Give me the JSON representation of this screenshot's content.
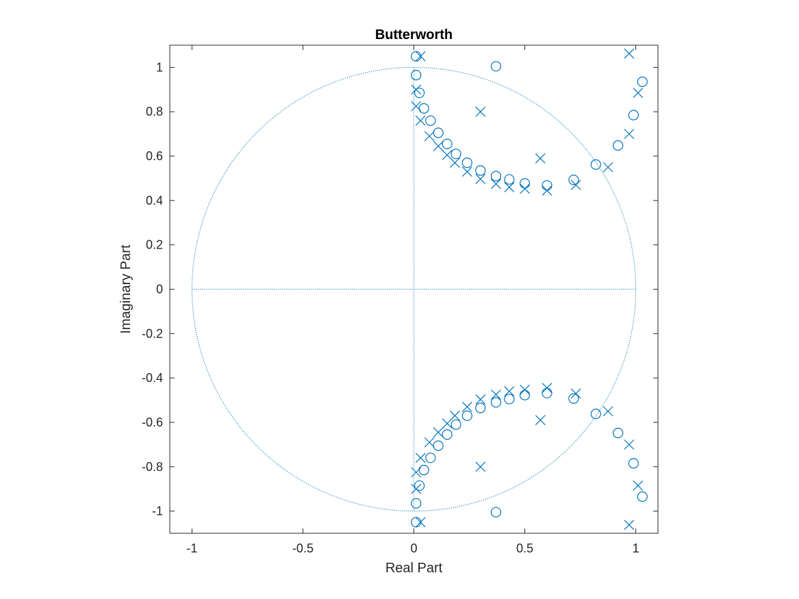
{
  "chart_data": {
    "type": "scatter",
    "title": "Butterworth",
    "xlabel": "Real Part",
    "ylabel": "Imaginary Part",
    "xlim": [
      -1.1,
      1.1
    ],
    "ylim": [
      -1.1,
      1.1
    ],
    "xticks": [
      -1,
      -0.5,
      0,
      0.5,
      1
    ],
    "xtick_labels": [
      "-1",
      "-0.5",
      "0",
      "0.5",
      "1"
    ],
    "yticks": [
      -1,
      -0.8,
      -0.6,
      -0.4,
      -0.2,
      0,
      0.2,
      0.4,
      0.6,
      0.8,
      1
    ],
    "ytick_labels": [
      "-1",
      "-0.8",
      "-0.6",
      "-0.4",
      "-0.2",
      "0",
      "0.2",
      "0.4",
      "0.6",
      "0.8",
      "1"
    ],
    "grid": false,
    "unit_circle": true,
    "marker_color": "#0072BD",
    "zeros_upper": [
      [
        0.01,
        1.05
      ],
      [
        0.01,
        0.965
      ],
      [
        0.025,
        0.885
      ],
      [
        0.045,
        0.815
      ],
      [
        0.075,
        0.76
      ],
      [
        0.11,
        0.705
      ],
      [
        0.15,
        0.655
      ],
      [
        0.19,
        0.61
      ],
      [
        0.24,
        0.57
      ],
      [
        0.3,
        0.535
      ],
      [
        0.37,
        0.51
      ],
      [
        0.43,
        0.495
      ],
      [
        0.5,
        0.477
      ],
      [
        0.6,
        0.468
      ],
      [
        0.72,
        0.493
      ],
      [
        0.82,
        0.562
      ],
      [
        0.92,
        0.648
      ],
      [
        0.99,
        0.785
      ],
      [
        1.03,
        0.935
      ],
      [
        0.37,
        1.005
      ]
    ],
    "poles_upper": [
      [
        0.03,
        1.05
      ],
      [
        0.01,
        0.9
      ],
      [
        0.01,
        0.825
      ],
      [
        0.03,
        0.76
      ],
      [
        0.07,
        0.69
      ],
      [
        0.11,
        0.645
      ],
      [
        0.15,
        0.605
      ],
      [
        0.185,
        0.57
      ],
      [
        0.24,
        0.53
      ],
      [
        0.3,
        0.497
      ],
      [
        0.37,
        0.475
      ],
      [
        0.43,
        0.46
      ],
      [
        0.5,
        0.453
      ],
      [
        0.6,
        0.445
      ],
      [
        0.73,
        0.47
      ],
      [
        0.875,
        0.55
      ],
      [
        0.97,
        0.7
      ],
      [
        1.01,
        0.885
      ],
      [
        0.97,
        1.062
      ],
      [
        0.3,
        0.8
      ],
      [
        0.57,
        0.59
      ]
    ]
  }
}
